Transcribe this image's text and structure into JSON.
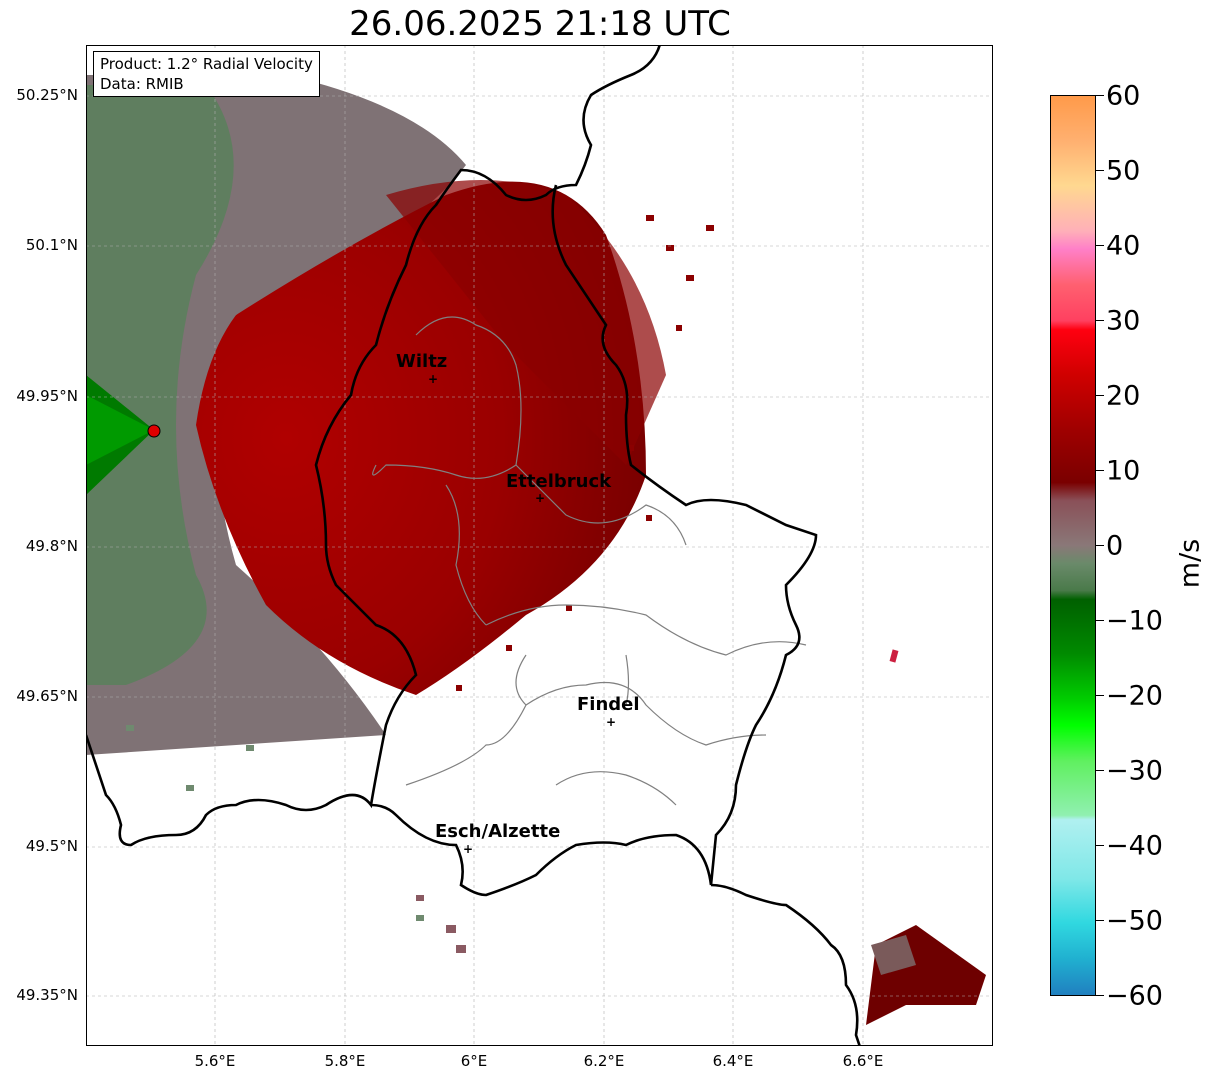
{
  "title": "26.06.2025 21:18 UTC",
  "info_box": {
    "product": "Product: 1.2° Radial Velocity",
    "data": "Data: RMIB"
  },
  "latitude_ticks": [
    "50.25°N",
    "50.1°N",
    "49.95°N",
    "49.8°N",
    "49.65°N",
    "49.5°N",
    "49.35°N"
  ],
  "longitude_ticks": [
    "5.6°E",
    "5.8°E",
    "6°E",
    "6.2°E",
    "6.4°E",
    "6.6°E"
  ],
  "cities": [
    {
      "name": "Wiltz"
    },
    {
      "name": "Ettelbruck"
    },
    {
      "name": "Findel"
    },
    {
      "name": "Esch/Alzette"
    }
  ],
  "colorbar": {
    "unit": "m/s",
    "ticks": [
      "60",
      "50",
      "40",
      "30",
      "20",
      "10",
      "0",
      "−10",
      "−20",
      "−30",
      "−40",
      "−50",
      "−60"
    ],
    "range": [
      -60,
      60
    ],
    "colors": {
      "strong_outbound": "#ff9a4a",
      "moderate_outbound": "#ff0010",
      "weak_outbound": "#7a0000",
      "near_zero": "#8a7878",
      "weak_inbound": "#006400",
      "moderate_inbound": "#00ee00",
      "strong_inbound": "#2080c0"
    }
  }
}
